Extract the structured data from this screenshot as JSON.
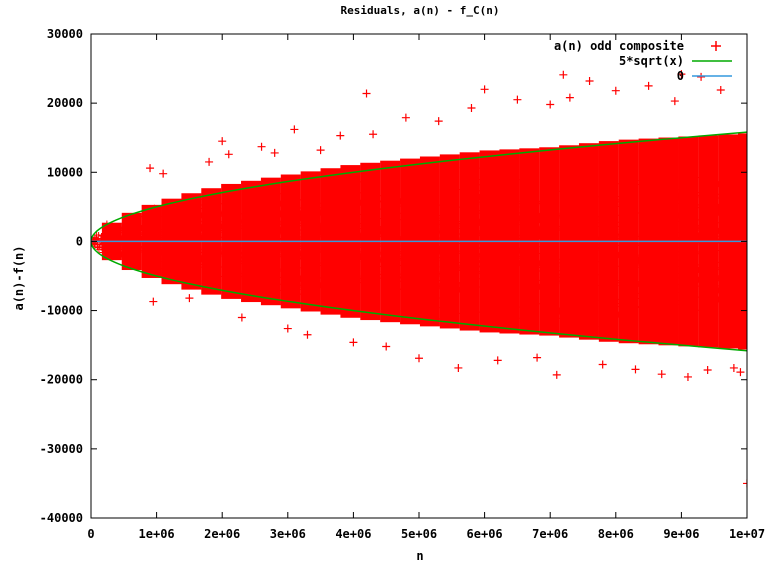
{
  "chart_data": {
    "type": "scatter",
    "title": "Residuals, a(n) - f_C(n)",
    "xlabel": "n",
    "ylabel": "a(n)-f(n)",
    "xlim": [
      0,
      10000000
    ],
    "ylim": [
      -40000,
      30000
    ],
    "x_ticks": [
      0,
      1000000,
      2000000,
      3000000,
      4000000,
      5000000,
      6000000,
      7000000,
      8000000,
      9000000,
      10000000
    ],
    "x_tick_labels": [
      "0",
      "1e+06",
      "2e+06",
      "3e+06",
      "4e+06",
      "5e+06",
      "6e+06",
      "7e+06",
      "8e+06",
      "9e+06",
      "1e+07"
    ],
    "y_ticks": [
      -40000,
      -30000,
      -20000,
      -10000,
      0,
      10000,
      20000,
      30000
    ],
    "y_tick_labels": [
      "-40000",
      "-30000",
      "-20000",
      "-10000",
      "0",
      "10000",
      "20000",
      "30000"
    ],
    "grid": false,
    "legend_position": "top-right",
    "series": [
      {
        "name": "a(n) odd composite",
        "kind": "points",
        "marker": "+",
        "color": "#ff0000",
        "envelope": {
          "x": [
            0,
            100000,
            250000,
            500000,
            1000000,
            1500000,
            2000000,
            3000000,
            4000000,
            5000000,
            6000000,
            7000000,
            8000000,
            9000000,
            10000000
          ],
          "upper": [
            0,
            2000,
            3300,
            4600,
            6500,
            7800,
            9000,
            10500,
            12000,
            13000,
            14000,
            14500,
            15500,
            16000,
            16500
          ],
          "lower": [
            0,
            -2000,
            -3300,
            -4600,
            -6500,
            -7800,
            -9000,
            -10500,
            -12000,
            -13000,
            -14000,
            -14500,
            -15500,
            -16000,
            -16500
          ]
        },
        "outliers": [
          [
            900000,
            10600
          ],
          [
            950000,
            -8700
          ],
          [
            1100000,
            9800
          ],
          [
            1500000,
            -8200
          ],
          [
            1800000,
            11500
          ],
          [
            2000000,
            14500
          ],
          [
            2100000,
            12600
          ],
          [
            2300000,
            -11000
          ],
          [
            2600000,
            13700
          ],
          [
            2800000,
            12800
          ],
          [
            3000000,
            -12600
          ],
          [
            3100000,
            16200
          ],
          [
            3300000,
            -13500
          ],
          [
            3500000,
            13200
          ],
          [
            3800000,
            15300
          ],
          [
            4000000,
            -14600
          ],
          [
            4200000,
            21400
          ],
          [
            4300000,
            15500
          ],
          [
            4500000,
            -15200
          ],
          [
            4800000,
            17900
          ],
          [
            5000000,
            -16900
          ],
          [
            5300000,
            17400
          ],
          [
            5600000,
            -18300
          ],
          [
            5800000,
            19300
          ],
          [
            6000000,
            22000
          ],
          [
            6200000,
            -17200
          ],
          [
            6500000,
            20500
          ],
          [
            6800000,
            -16800
          ],
          [
            7000000,
            19800
          ],
          [
            7100000,
            -19300
          ],
          [
            7200000,
            24100
          ],
          [
            7300000,
            20800
          ],
          [
            7600000,
            23200
          ],
          [
            7800000,
            -17800
          ],
          [
            8000000,
            21800
          ],
          [
            8300000,
            -18500
          ],
          [
            8500000,
            22500
          ],
          [
            8700000,
            -19200
          ],
          [
            8900000,
            20300
          ],
          [
            9000000,
            24200
          ],
          [
            9100000,
            -19600
          ],
          [
            9300000,
            23800
          ],
          [
            9400000,
            -18600
          ],
          [
            9600000,
            21900
          ],
          [
            9800000,
            -18300
          ],
          [
            9900000,
            -18900
          ],
          [
            10000000,
            -35000
          ]
        ]
      },
      {
        "name": "5*sqrt(x)",
        "kind": "curve",
        "color": "#00aa00",
        "formula": "±5*sqrt(x)"
      },
      {
        "name": "0",
        "kind": "line",
        "color": "#3399dd",
        "x": [
          0,
          10000000
        ],
        "y": [
          0,
          0
        ]
      }
    ]
  }
}
